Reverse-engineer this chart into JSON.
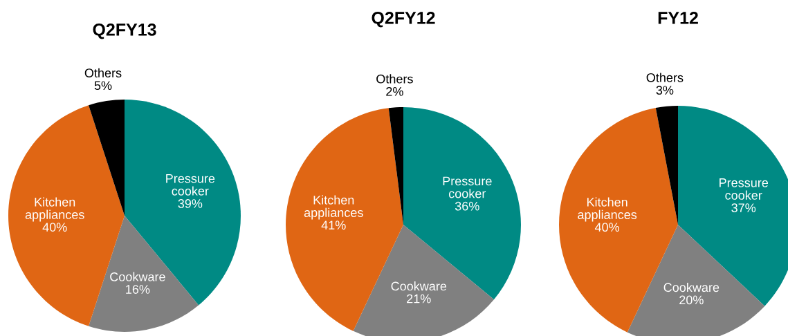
{
  "chart_data": [
    {
      "type": "pie",
      "title": "Q2FY13",
      "categories": [
        "Pressure\ncooker",
        "Cookware",
        "Kitchen\nappliances",
        "Others"
      ],
      "values": [
        39,
        16,
        40,
        5
      ],
      "value_labels": [
        "39%",
        "16%",
        "40%",
        "5%"
      ],
      "colors": [
        "#008a84",
        "#808080",
        "#e06614",
        "#000000"
      ]
    },
    {
      "type": "pie",
      "title": "Q2FY12",
      "categories": [
        "Pressure\ncooker",
        "Cookware",
        "Kitchen\nappliances",
        "Others"
      ],
      "values": [
        36,
        21,
        41,
        2
      ],
      "value_labels": [
        "36%",
        "21%",
        "41%",
        "2%"
      ],
      "colors": [
        "#008a84",
        "#808080",
        "#e06614",
        "#000000"
      ]
    },
    {
      "type": "pie",
      "title": "FY12",
      "categories": [
        "Pressure\ncooker",
        "Cookware",
        "Kitchen\nappliances",
        "Others"
      ],
      "values": [
        37,
        20,
        40,
        3
      ],
      "value_labels": [
        "37%",
        "20%",
        "40%",
        "3%"
      ],
      "colors": [
        "#008a84",
        "#808080",
        "#e06614",
        "#000000"
      ]
    }
  ]
}
